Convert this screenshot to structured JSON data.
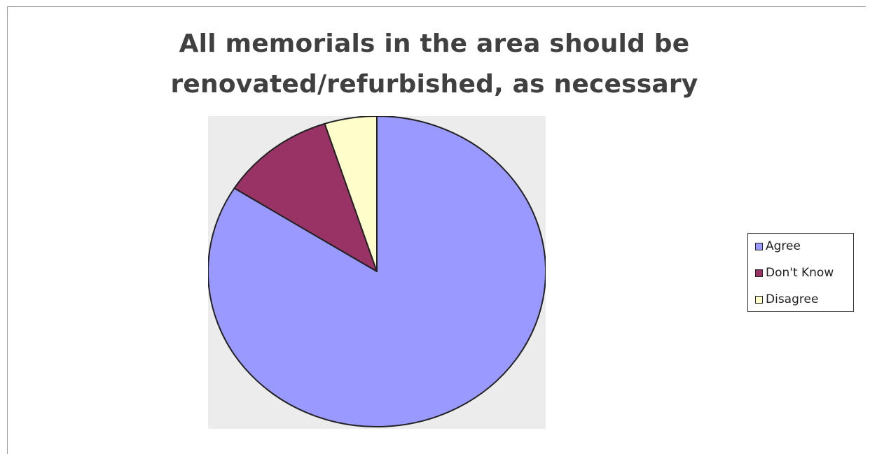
{
  "chart_data": {
    "type": "pie",
    "title_lines": [
      "All memorials in the area should be",
      "renovated/refurbished, as necessary"
    ],
    "categories": [
      "Agree",
      "Don't Know",
      "Disagree"
    ],
    "values": [
      84,
      11,
      5
    ],
    "colors": [
      "#9999ff",
      "#993366",
      "#ffffcc"
    ],
    "legend_position": "right",
    "start_angle": "12 o'clock",
    "direction": "clockwise"
  }
}
